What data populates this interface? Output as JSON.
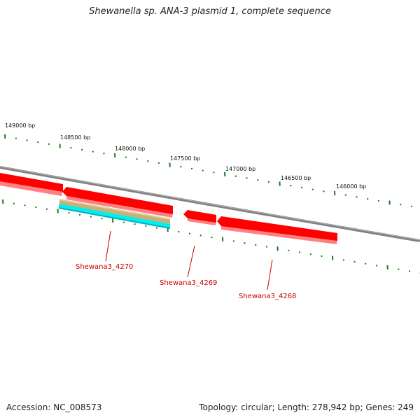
{
  "title": "Shewanella sp. ANA-3 plasmid 1, complete sequence",
  "footer": {
    "accession": "Accession: NC_008573",
    "stats": "Topology: circular; Length: 278,942 bp; Genes: 249"
  },
  "ruler_labels": [
    "149000 bp",
    "148500 bp",
    "148000 bp",
    "147500 bp",
    "147000 bp",
    "146500 bp",
    "146000 bp"
  ],
  "gene_labels": [
    "Shewana3_4270",
    "Shewana3_4269",
    "Shewana3_4268"
  ],
  "colors": {
    "gene": "#ff0000",
    "gene_shadow": "#ff8080",
    "backbone": "#808080",
    "tick": "#1a7a1a",
    "feature_tan": "#c8b27a",
    "feature_cyan": "#00f0f0",
    "label": "#cc0000"
  }
}
